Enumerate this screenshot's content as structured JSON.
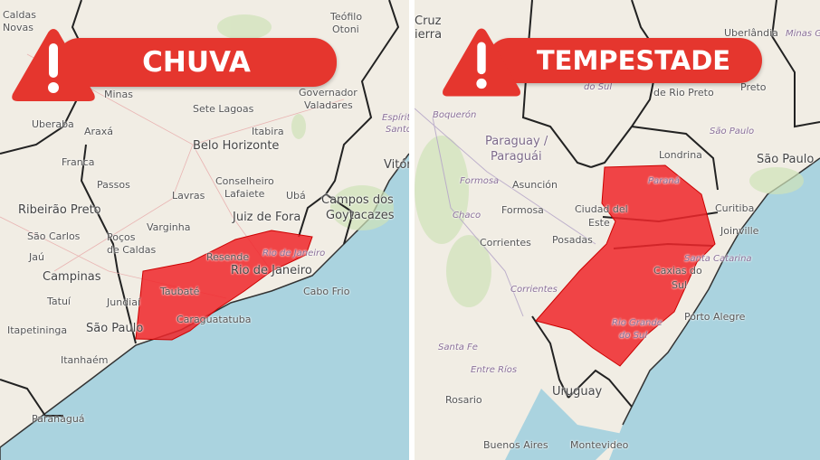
{
  "panels": [
    {
      "title": "CHUVA",
      "labels": [
        "Caldas",
        "Novas",
        "Teófilo",
        "Otoni",
        "Minas",
        "Governador",
        "Valadares",
        "Sete Lagoas",
        "Uberaba",
        "Araxá",
        "Itabira",
        "Espírito",
        "Santo",
        "Belo Horizonte",
        "Franca",
        "Vitór",
        "Passos",
        "Conselheiro",
        "Lafaiete",
        "Lavras",
        "Ubá",
        "Ribeirão Preto",
        "Campos dos",
        "Goytacazes",
        "Juiz de Fora",
        "Varginha",
        "São Carlos",
        "Poços",
        "de Caldas",
        "Jaú",
        "Resende",
        "Rio de Janeiro",
        "Campinas",
        "Rio de Janeiro",
        "Taubaté",
        "Jundiaí",
        "Tatuí",
        "Cabo Frio",
        "Itapetininga",
        "São Paulo",
        "Caraguatatuba",
        "Itanhaém",
        "Paranaguá"
      ]
    },
    {
      "title": "TEMPESTADE",
      "labels": [
        "Cruz",
        "ierra",
        "Uberlândia",
        "Minas G",
        "do Sul",
        "de Rio Preto",
        "Preto",
        "Boquerón",
        "São Paulo",
        "Paraguay /",
        "Paraguái",
        "Londrina",
        "São Paulo",
        "Formosa",
        "Asunción",
        "Paraná",
        "Chaco",
        "Formosa",
        "Ciudad del",
        "Este",
        "Curitiba",
        "Corrientes",
        "Posadas",
        "Joinville",
        "Santa Catarina",
        "Caxias do",
        "Sul",
        "Corrientes",
        "Porto Alegre",
        "Rio Grande",
        "do Sul",
        "Santa Fe",
        "Entre Ríos",
        "Uruguay",
        "Rosario",
        "Buenos Aires",
        "Montevideo"
      ]
    }
  ],
  "colors": {
    "alert_red": "#e5362e",
    "warning_area": "#f0262a",
    "sea": "#aad3df",
    "land": "#f1ede4"
  },
  "icons": [
    "warning-triangle-icon"
  ]
}
